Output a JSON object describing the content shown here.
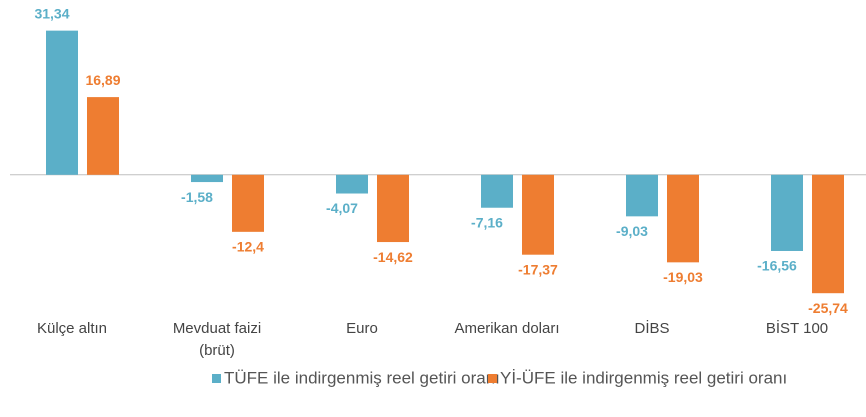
{
  "chart_data": {
    "type": "bar",
    "categories": [
      "Külçe altın",
      "Mevduat faizi\n(brüt)",
      "Euro",
      "Amerikan doları",
      "DİBS",
      "BİST 100"
    ],
    "series": [
      {
        "name": "TÜFE ile indirgenmiş reel getiri oranı",
        "color": "#5bafc8",
        "values": [
          31.34,
          -1.58,
          -4.07,
          -7.16,
          -9.03,
          -16.56
        ],
        "value_labels": [
          "31,34",
          "-1,58",
          "-4,07",
          "-7,16",
          "-9,03",
          "-16,56"
        ]
      },
      {
        "name": "Yİ-ÜFE ile indirgenmiş reel getiri oranı",
        "color": "#ee7d31",
        "values": [
          16.89,
          -12.4,
          -14.62,
          -17.37,
          -19.03,
          -25.74
        ],
        "value_labels": [
          "16,89",
          "-12,4",
          "-14,62",
          "-17,37",
          "-19,03",
          "-25,74"
        ]
      }
    ],
    "ylim": [
      -28,
      33
    ]
  }
}
